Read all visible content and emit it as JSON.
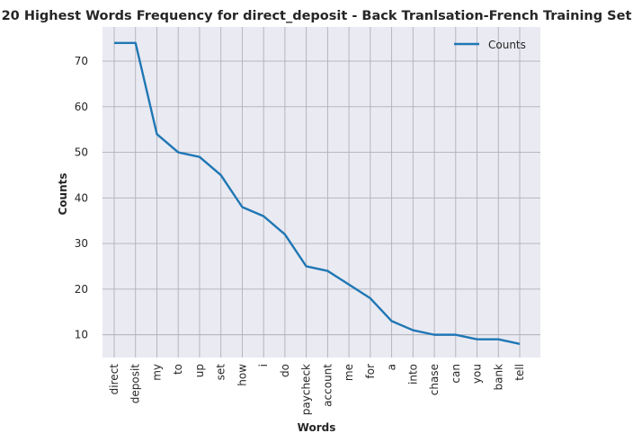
{
  "chart_data": {
    "type": "line",
    "title": "20 Highest Words Frequency for direct_deposit - Back Tranlsation-French Training Set",
    "xlabel": "Words",
    "ylabel": "Counts",
    "categories": [
      "direct",
      "deposit",
      "my",
      "to",
      "up",
      "set",
      "how",
      "i",
      "do",
      "paycheck",
      "account",
      "me",
      "for",
      "a",
      "into",
      "chase",
      "can",
      "you",
      "bank",
      "tell"
    ],
    "series": [
      {
        "name": "Counts",
        "values": [
          74,
          74,
          54,
          50,
          49,
          45,
          38,
          36,
          32,
          25,
          24,
          21,
          18,
          13,
          11,
          10,
          10,
          9,
          9,
          8
        ],
        "color": "#1f77b4"
      }
    ],
    "ylim": [
      5,
      77.5
    ],
    "yticks": [
      10,
      20,
      30,
      40,
      50,
      60,
      70
    ],
    "grid": true,
    "legend": "top-right",
    "background": "#eaeaf2",
    "grid_color": "#b0b0b8"
  }
}
